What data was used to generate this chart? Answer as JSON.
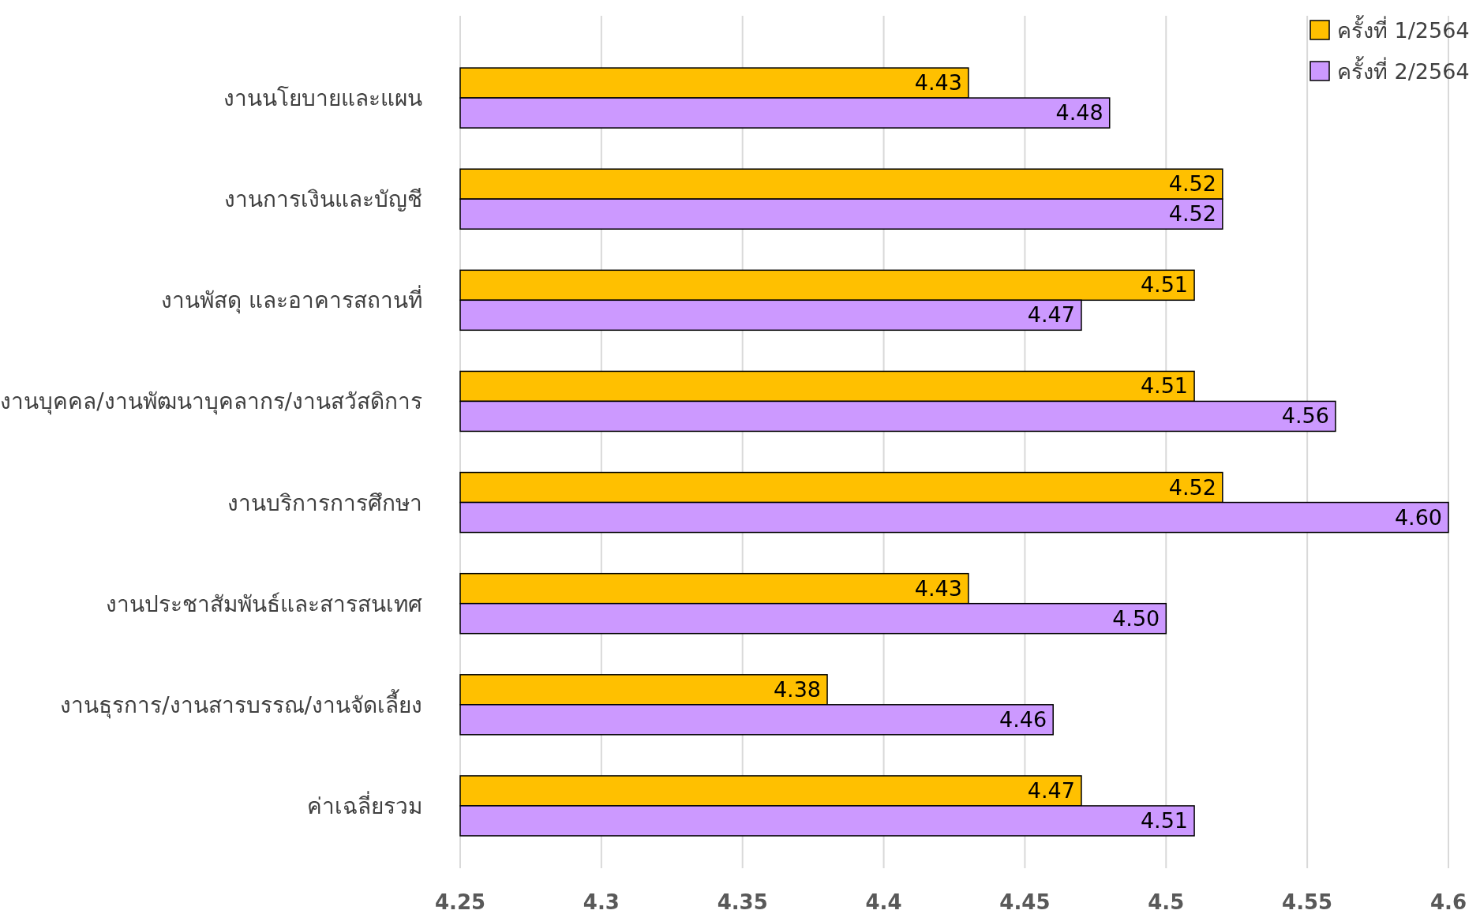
{
  "chart_data": {
    "type": "bar",
    "orientation": "horizontal",
    "categories": [
      "งานนโยบายและแผน",
      "งานการเงินและบัญชี",
      "งานพัสดุ และอาคารสถานที่",
      "งานบุคคล/งานพัฒนาบุคลากร/งานสวัสดิการ",
      "งานบริการการศึกษา",
      "งานประชาสัมพันธ์และสารสนเทศ",
      "งานธุรการ/งานสารบรรณ/งานจัดเลี้ยง",
      "ค่าเฉลี่ยรวม"
    ],
    "series": [
      {
        "name": "ครั้งที่ 1/2564",
        "color": "#ffc000",
        "values": [
          4.43,
          4.52,
          4.51,
          4.51,
          4.52,
          4.43,
          4.38,
          4.47
        ],
        "value_labels": [
          "4.43",
          "4.52",
          "4.51",
          "4.51",
          "4.52",
          "4.43",
          "4.38",
          "4.47"
        ]
      },
      {
        "name": "ครั้งที่ 2/2564",
        "color": "#cc99ff",
        "values": [
          4.48,
          4.52,
          4.47,
          4.56,
          4.6,
          4.5,
          4.46,
          4.51
        ],
        "value_labels": [
          "4.48",
          "4.52",
          "4.47",
          "4.56",
          "4.60",
          "4.50",
          "4.46",
          "4.51"
        ]
      }
    ],
    "xlim": [
      4.25,
      4.6
    ],
    "xticks": [
      4.25,
      4.3,
      4.35,
      4.4,
      4.45,
      4.5,
      4.55,
      4.6
    ],
    "grid": "x",
    "legend": "top right"
  }
}
